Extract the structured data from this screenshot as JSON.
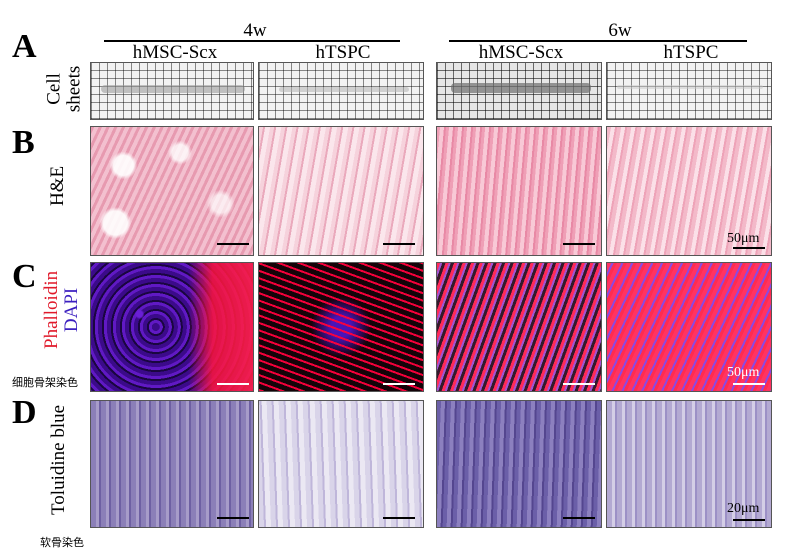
{
  "headers": {
    "time_4w": "4w",
    "time_6w": "6w",
    "col1": "hMSC-Scx",
    "col2": "hTSPC",
    "col3": "hMSC-Scx",
    "col4": "hTSPC"
  },
  "panels": {
    "a": "A",
    "b": "B",
    "c": "C",
    "d": "D"
  },
  "row_labels": {
    "cell_sheets_line1": "Cell",
    "cell_sheets_line2": "sheets",
    "he": "H&E",
    "phalloidin": "Phalloidin",
    "dapi": "DAPI",
    "toluidine": "Toluidine blue"
  },
  "scale_labels": {
    "he": "50μm",
    "fluorescence": "50μm",
    "toluidine": "20μm"
  },
  "annotations": {
    "phalloidin_cn": "细胞骨架染色",
    "toluidine_cn": "软骨染色"
  },
  "colors": {
    "phalloidin": "#e0192a",
    "dapi": "#3b1fbf"
  }
}
